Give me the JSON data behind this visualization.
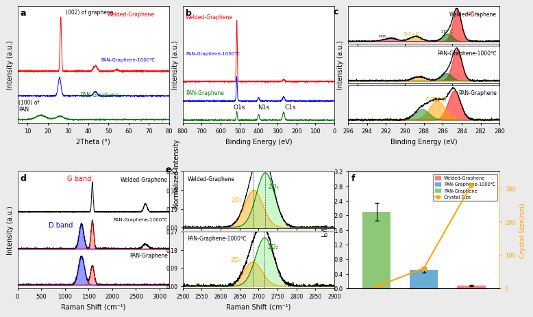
{
  "bg_color": "#ebebeb",
  "panel_bg": "white",
  "panel_f_bars": [
    {
      "label": "PAN-Graphene",
      "value": 2.1,
      "error": 0.25,
      "color": "#8dc878"
    },
    {
      "label": "PAN-Graphene-1000℃",
      "value": 0.5,
      "error": 0.07,
      "color": "#6bacd4"
    },
    {
      "label": "Welded-Graphene",
      "value": 0.07,
      "error": 0.02,
      "color": "#f08080"
    }
  ],
  "crystal_sizes": [
    5,
    60,
    310
  ],
  "ylim_left": [
    0,
    3.2
  ],
  "ylim_right": [
    0,
    350
  ],
  "yticks_left": [
    0.0,
    0.4,
    0.8,
    1.2,
    1.6,
    2.0,
    2.4,
    2.8,
    3.2
  ],
  "yticks_right": [
    0,
    100,
    200,
    300
  ]
}
